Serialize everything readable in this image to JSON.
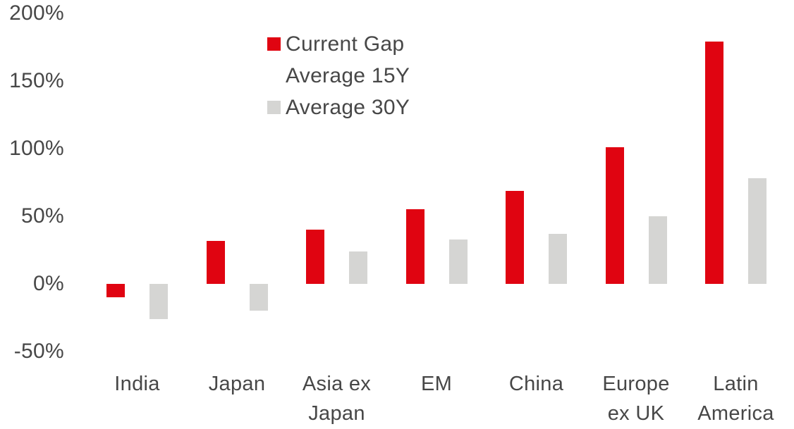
{
  "chart_data": {
    "type": "bar",
    "title": "",
    "xlabel": "",
    "ylabel": "",
    "categories": [
      "India",
      "Japan",
      "Asia ex\nJapan",
      "EM",
      "China",
      "Europe\nex UK",
      "Latin\nAmerica"
    ],
    "series": [
      {
        "name": "Current Gap",
        "color": "#e00411",
        "values": [
          -10,
          32,
          40,
          55,
          69,
          101,
          179
        ]
      },
      {
        "name": "Average 15Y",
        "color": "#ffffff",
        "values": [
          null,
          null,
          null,
          null,
          null,
          null,
          null
        ],
        "note": "swatch and bars are white, not visible against background"
      },
      {
        "name": "Average 30Y",
        "color": "#d5d5d3",
        "values": [
          -26,
          -20,
          24,
          33,
          37,
          50,
          78
        ]
      }
    ],
    "y_axis": {
      "unit": "%",
      "range": [
        -50,
        200
      ],
      "ticks": [
        {
          "value": 200,
          "label": "200%"
        },
        {
          "value": 150,
          "label": "150%"
        },
        {
          "value": 100,
          "label": "100%"
        },
        {
          "value": 50,
          "label": "50%"
        },
        {
          "value": 0,
          "label": "0%"
        },
        {
          "value": -50,
          "label": "-50%"
        }
      ]
    },
    "grid": false,
    "legend_position": "top, inside plot, left of center"
  },
  "colors": {
    "text": "#474747",
    "background": "#ffffff",
    "current_gap": "#e00411",
    "average_30y": "#d5d5d3"
  }
}
